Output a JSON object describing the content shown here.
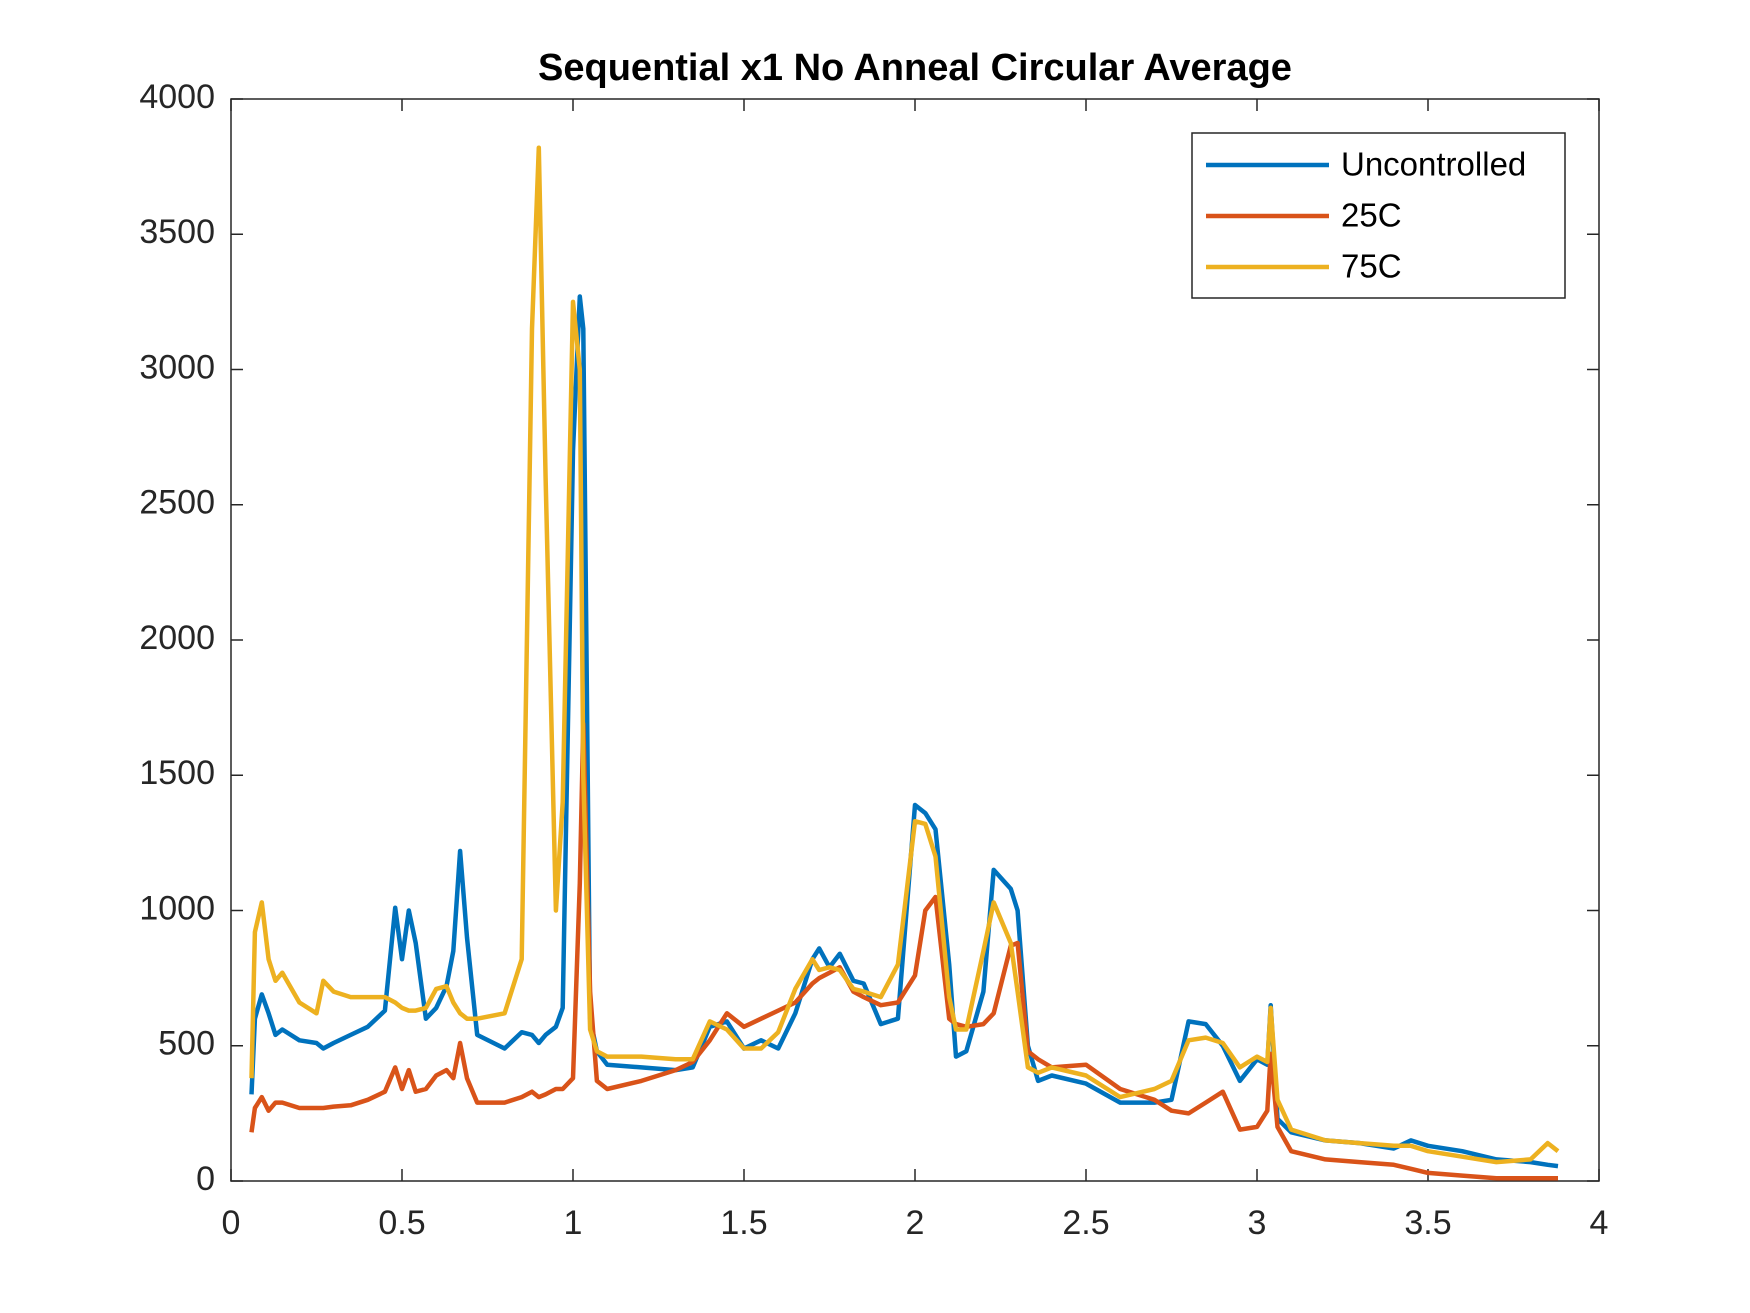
{
  "chart_data": {
    "type": "line",
    "title": "Sequential x1 No Anneal Circular Average",
    "x": [
      0.06,
      0.07,
      0.09,
      0.11,
      0.13,
      0.15,
      0.2,
      0.25,
      0.27,
      0.3,
      0.35,
      0.4,
      0.45,
      0.48,
      0.5,
      0.52,
      0.54,
      0.57,
      0.6,
      0.63,
      0.65,
      0.67,
      0.69,
      0.72,
      0.8,
      0.85,
      0.88,
      0.9,
      0.92,
      0.95,
      0.97,
      1.0,
      1.02,
      1.03,
      1.05,
      1.07,
      1.1,
      1.2,
      1.3,
      1.35,
      1.4,
      1.45,
      1.5,
      1.55,
      1.6,
      1.65,
      1.7,
      1.72,
      1.75,
      1.78,
      1.82,
      1.85,
      1.9,
      1.95,
      2.0,
      2.03,
      2.06,
      2.1,
      2.12,
      2.15,
      2.2,
      2.23,
      2.28,
      2.3,
      2.33,
      2.36,
      2.4,
      2.5,
      2.6,
      2.7,
      2.75,
      2.8,
      2.85,
      2.9,
      2.95,
      3.0,
      3.03,
      3.04,
      3.06,
      3.1,
      3.2,
      3.3,
      3.4,
      3.45,
      3.5,
      3.6,
      3.7,
      3.8,
      3.85,
      3.88
    ],
    "series": [
      {
        "name": "Uncontrolled",
        "color": "#0072BD",
        "values": [
          320,
          600,
          690,
          620,
          540,
          560,
          520,
          510,
          490,
          510,
          540,
          570,
          630,
          1010,
          820,
          1000,
          880,
          600,
          640,
          720,
          850,
          1220,
          900,
          540,
          490,
          550,
          540,
          510,
          540,
          570,
          640,
          2700,
          3270,
          3150,
          600,
          480,
          430,
          420,
          410,
          420,
          570,
          590,
          490,
          520,
          490,
          620,
          820,
          860,
          790,
          840,
          740,
          730,
          580,
          600,
          1390,
          1360,
          1300,
          800,
          460,
          480,
          700,
          1150,
          1080,
          1000,
          500,
          370,
          390,
          360,
          290,
          290,
          300,
          590,
          580,
          500,
          370,
          450,
          430,
          650,
          230,
          180,
          150,
          140,
          120,
          150,
          130,
          110,
          80,
          70,
          60,
          55
        ]
      },
      {
        "name": "25C",
        "color": "#D95319",
        "values": [
          180,
          270,
          310,
          260,
          290,
          290,
          270,
          270,
          270,
          275,
          280,
          300,
          330,
          420,
          340,
          410,
          330,
          340,
          390,
          410,
          380,
          510,
          380,
          290,
          290,
          310,
          330,
          310,
          320,
          340,
          340,
          380,
          1100,
          1690,
          700,
          370,
          340,
          370,
          410,
          440,
          520,
          620,
          570,
          600,
          630,
          660,
          730,
          750,
          770,
          790,
          700,
          680,
          650,
          660,
          760,
          1000,
          1050,
          600,
          580,
          570,
          580,
          620,
          870,
          880,
          480,
          450,
          420,
          430,
          340,
          300,
          260,
          250,
          290,
          330,
          190,
          200,
          260,
          470,
          200,
          110,
          80,
          70,
          60,
          45,
          30,
          20,
          10,
          10,
          10,
          10
        ]
      },
      {
        "name": "75C",
        "color": "#EDB120",
        "values": [
          380,
          920,
          1030,
          820,
          740,
          770,
          660,
          620,
          740,
          700,
          680,
          680,
          680,
          660,
          640,
          630,
          630,
          640,
          710,
          720,
          660,
          620,
          600,
          600,
          620,
          820,
          3150,
          3820,
          2600,
          1000,
          1400,
          3250,
          3000,
          1500,
          560,
          480,
          460,
          460,
          450,
          450,
          590,
          560,
          490,
          490,
          550,
          710,
          820,
          780,
          790,
          780,
          710,
          700,
          680,
          800,
          1330,
          1320,
          1200,
          680,
          560,
          560,
          850,
          1030,
          880,
          700,
          420,
          400,
          420,
          390,
          310,
          340,
          370,
          520,
          530,
          510,
          420,
          460,
          440,
          640,
          300,
          190,
          150,
          140,
          130,
          130,
          110,
          90,
          70,
          80,
          140,
          110
        ]
      }
    ],
    "xlim": [
      0,
      4
    ],
    "xticks": [
      0,
      0.5,
      1,
      1.5,
      2,
      2.5,
      3,
      3.5,
      4
    ],
    "ylim": [
      0,
      4000
    ],
    "yticks": [
      0,
      500,
      1000,
      1500,
      2000,
      2500,
      3000,
      3500,
      4000
    ],
    "legend": "northeast"
  }
}
